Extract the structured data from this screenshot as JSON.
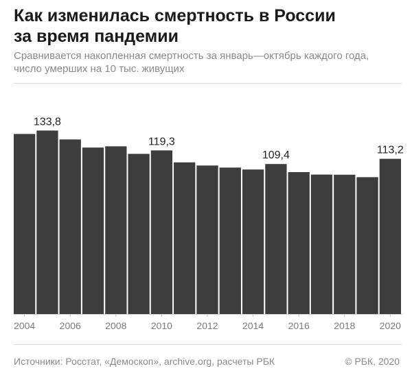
{
  "header": {
    "title_line1": "Как изменилась смертность в России",
    "title_line2": "за время пандемии",
    "subtitle_line1": "Сравнивается накопленная смертность за январь—октябрь каждого года,",
    "subtitle_line2": "число умерших на 10 тыс. живущих"
  },
  "footer": {
    "sources": "Источники: Росстат, «Демоскоп», archive.org, расчеты РБК",
    "copyright": "© РБК, 2020"
  },
  "chart_data": {
    "type": "bar",
    "categories": [
      "2004",
      "2005",
      "2006",
      "2007",
      "2008",
      "2009",
      "2010",
      "2011",
      "2012",
      "2013",
      "2014",
      "2015",
      "2016",
      "2017",
      "2018",
      "2019",
      "2020"
    ],
    "values": [
      131.3,
      133.8,
      127.3,
      121.4,
      122.3,
      116.8,
      119.3,
      110.6,
      108.3,
      106.8,
      105.4,
      109.4,
      103.5,
      101.7,
      101.6,
      99.8,
      113.2
    ],
    "ylim": [
      0,
      140
    ],
    "x_tick_labels": [
      "2004",
      "2006",
      "2008",
      "2010",
      "2012",
      "2014",
      "2016",
      "2018",
      "2020"
    ],
    "data_labels": [
      {
        "category": "2005",
        "text": "133,8"
      },
      {
        "category": "2010",
        "text": "119,3"
      },
      {
        "category": "2015",
        "text": "109,4"
      },
      {
        "category": "2020",
        "text": "113,2"
      }
    ],
    "bar_color": "#3d3d3d",
    "grid": false
  }
}
